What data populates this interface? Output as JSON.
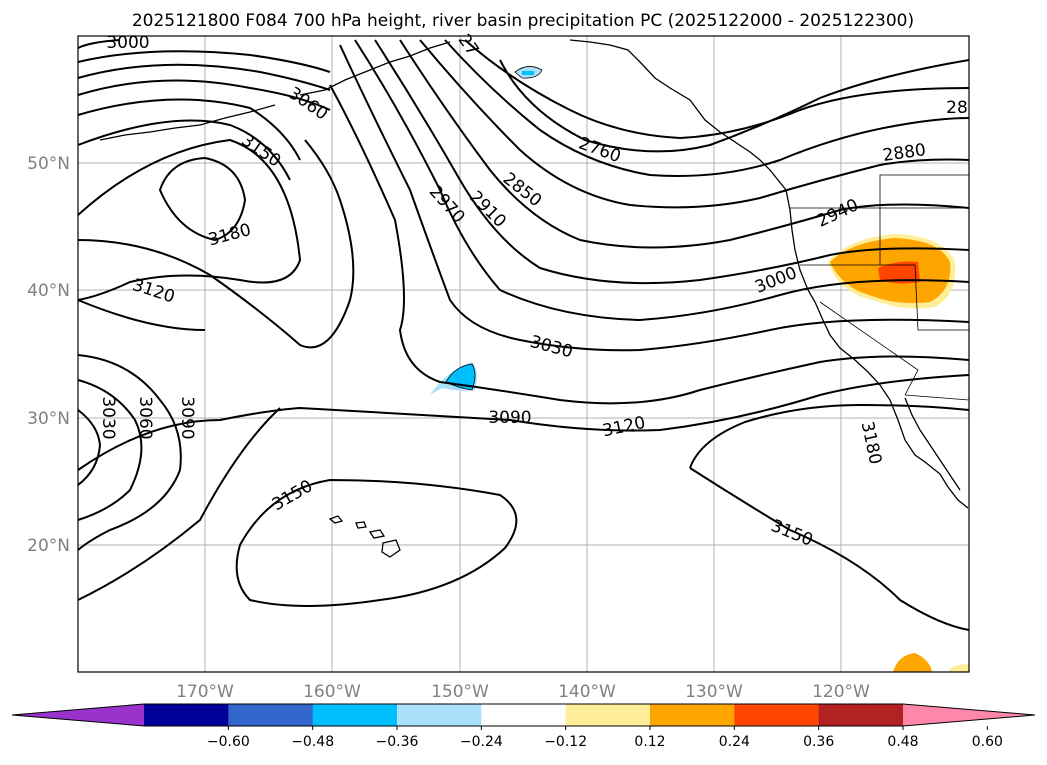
{
  "title": "2025121800 F084 700 hPa height, river basin precipitation PC (2025122000 - 2025122300)",
  "lon_labels": [
    "170°W",
    "160°W",
    "150°W",
    "140°W",
    "130°W",
    "120°W"
  ],
  "lat_labels": [
    "50°N",
    "40°N",
    "30°N",
    "20°N"
  ],
  "contour_labels": [
    "3000",
    "3060",
    "3150",
    "3180",
    "3120",
    "2970",
    "2910",
    "2850",
    "2760",
    "2880",
    "2940",
    "3000",
    "3030",
    "3090",
    "3120",
    "3030",
    "3060",
    "3090",
    "3150",
    "3150",
    "3180",
    "28",
    "27"
  ],
  "colorbar": {
    "tick_labels": [
      "−0.60",
      "−0.48",
      "−0.36",
      "−0.24",
      "−0.12",
      "0.12",
      "0.24",
      "0.36",
      "0.48",
      "0.60"
    ],
    "colors": [
      "#9933cc",
      "#000099",
      "#3366cc",
      "#00bfff",
      "#aae0fa",
      "#ffffff",
      "#ffee99",
      "#ffa500",
      "#ff4500",
      "#b22222",
      "#ff88aa"
    ]
  },
  "legend_levels": {
    "contour_variable": "700 hPa height",
    "shaded_variable": "river basin precipitation PC"
  }
}
